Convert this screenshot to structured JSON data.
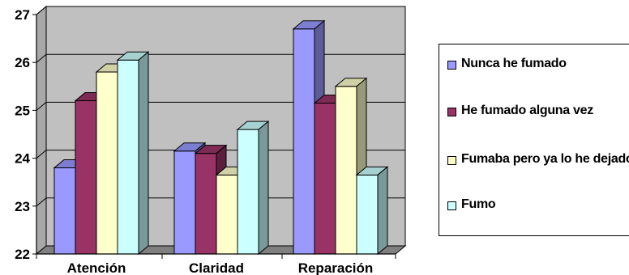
{
  "chart_data": {
    "type": "bar",
    "categories": [
      "Atención",
      "Claridad",
      "Reparación"
    ],
    "series": [
      {
        "name": "Nunca he fumado",
        "color": "#9999FF",
        "values": [
          23.8,
          24.15,
          26.7
        ]
      },
      {
        "name": "He fumado alguna vez",
        "color": "#993366",
        "values": [
          25.2,
          24.1,
          25.15
        ]
      },
      {
        "name": "Fumaba pero ya lo he dejado",
        "color": "#FFFFCC",
        "values": [
          25.8,
          23.65,
          25.5
        ]
      },
      {
        "name": "Fumo",
        "color": "#CCFFFF",
        "values": [
          26.05,
          24.6,
          23.65
        ]
      }
    ],
    "ylim": [
      22,
      27
    ],
    "yticks": [
      "22",
      "23",
      "24",
      "25",
      "26",
      "27"
    ],
    "grid": true,
    "plot_background": "#C0C0C0",
    "three_d": true,
    "legend_position": "right"
  }
}
